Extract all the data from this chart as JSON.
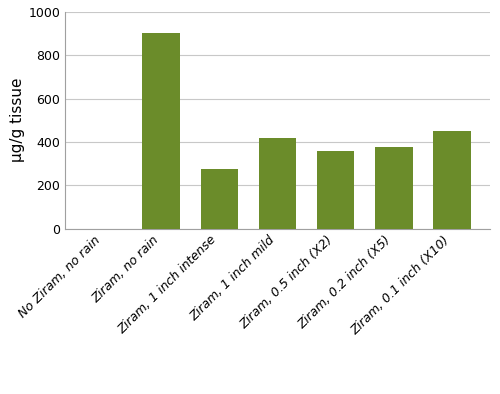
{
  "categories": [
    "No Ziram, no rain",
    "Ziram, no rain",
    "Ziram, 1 inch intense",
    "Ziram, 1 inch mild",
    "Ziram, 0.5 inch (X2)",
    "Ziram, 0.2 inch (X5)",
    "Ziram, 0.1 inch (X10)"
  ],
  "values": [
    0,
    900,
    275,
    420,
    360,
    375,
    450
  ],
  "bar_color": "#6b8c2a",
  "ylabel": "µg/g tissue",
  "ylim": [
    0,
    1000
  ],
  "yticks": [
    0,
    200,
    400,
    600,
    800,
    1000
  ],
  "background_color": "#ffffff",
  "grid_color": "#c8c8c8",
  "ylabel_fontsize": 11,
  "tick_fontsize": 9,
  "bar_width": 0.65
}
